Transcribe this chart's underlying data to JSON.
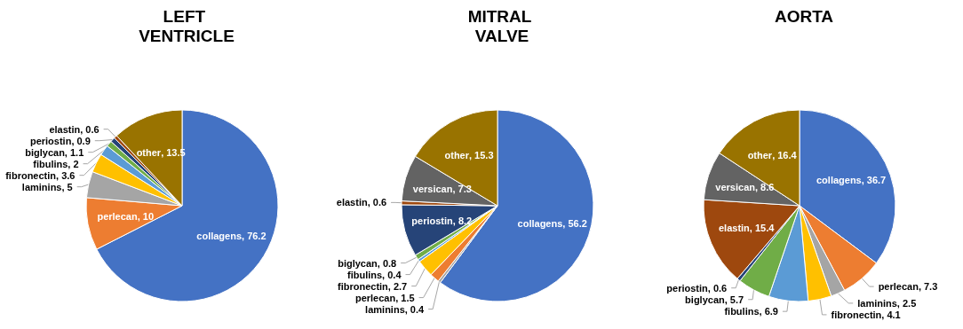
{
  "chart_data": [
    {
      "type": "pie",
      "title": "LEFT VENTRICLE",
      "categories": [
        "collagens",
        "perlecan",
        "laminins",
        "fibronectin",
        "fibulins",
        "biglycan",
        "periostin",
        "elastin",
        "other"
      ],
      "values": [
        76.2,
        10,
        5,
        3.6,
        2,
        1.1,
        0.9,
        0.6,
        13.5
      ],
      "value_labels": [
        ", 76.2",
        ", 10",
        ", 5",
        ", 3.6",
        ", 2",
        ", 1.1",
        ", 0.9",
        ", 0.6",
        ", 13.5"
      ],
      "colors": [
        "#4472c4",
        "#ed7d31",
        "#a5a5a5",
        "#ffc000",
        "#5b9bd5",
        "#70ad47",
        "#264478",
        "#9e480e",
        "#997300"
      ]
    },
    {
      "type": "pie",
      "title": "MITRAL VALVE",
      "categories": [
        "collagens",
        "laminins",
        "perlecan",
        "fibronectin",
        "fibulins",
        "biglycan",
        "periostin",
        "elastin",
        "versican",
        "other"
      ],
      "values": [
        56.2,
        0.4,
        1.5,
        2.7,
        0.4,
        0.8,
        8.2,
        0.6,
        7.3,
        15.3
      ],
      "value_labels": [
        ", 56.2",
        ", 0.4",
        ", 1.5",
        ", 2.7",
        ", 0.4",
        ", 0.8",
        ", 8.2",
        ", 0.6",
        ", 7.3",
        ", 15.3"
      ],
      "colors": [
        "#4472c4",
        "#a5a5a5",
        "#ed7d31",
        "#ffc000",
        "#5b9bd5",
        "#70ad47",
        "#264478",
        "#9e480e",
        "#636363",
        "#997300"
      ]
    },
    {
      "type": "pie",
      "title": "AORTA",
      "categories": [
        "collagens",
        "perlecan",
        "laminins",
        "fibronectin",
        "fibulins",
        "biglycan",
        "periostin",
        "elastin",
        "versican",
        "other"
      ],
      "values": [
        36.7,
        7.3,
        2.5,
        4.1,
        6.9,
        5.7,
        0.6,
        15.4,
        8.6,
        16.4
      ],
      "value_labels": [
        ", 36.7",
        ", 7.3",
        ", 2.5",
        ", 4.1",
        ", 6.9",
        ", 5.7",
        ", 0.6",
        ", 15.4",
        ", 8.6",
        ", 16.4"
      ],
      "colors": [
        "#4472c4",
        "#ed7d31",
        "#a5a5a5",
        "#ffc000",
        "#5b9bd5",
        "#70ad47",
        "#264478",
        "#9e480e",
        "#636363",
        "#997300"
      ]
    }
  ]
}
